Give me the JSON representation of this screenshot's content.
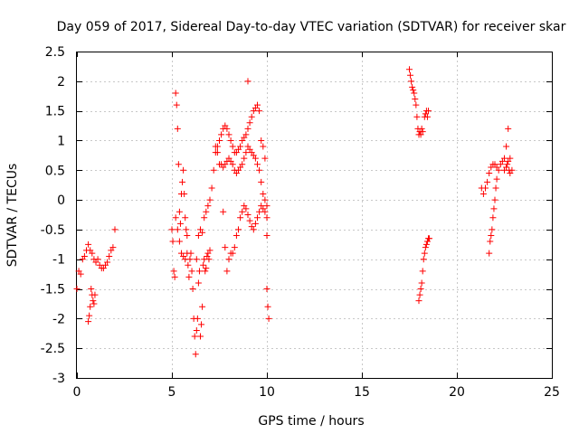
{
  "chart_data": {
    "type": "scatter",
    "title": "Day 059 of 2017, Sidereal Day-to-day VTEC variation (SDTVAR) for receiver skar",
    "xlabel": "GPS time / hours",
    "ylabel": "SDTVAR / TECUs",
    "xlim": [
      0,
      25
    ],
    "ylim": [
      -3,
      2.5
    ],
    "xticks": [
      0,
      5,
      10,
      15,
      20,
      25
    ],
    "xtick_labels": [
      "0",
      "5",
      "10",
      "15",
      "20",
      "25"
    ],
    "yticks": [
      -3,
      -2.5,
      -2,
      -1.5,
      -1,
      -0.5,
      0,
      0.5,
      1,
      1.5,
      2,
      2.5
    ],
    "ytick_labels": [
      "-3",
      "-2.5",
      "-2",
      "-1.5",
      "-1",
      "-0.5",
      "0",
      "0.5",
      "1",
      "1.5",
      "2",
      "2.5"
    ],
    "grid": true,
    "marker": "+",
    "color": "#ff0000",
    "series": [
      {
        "name": "SDTVAR",
        "x": [
          0.0,
          0.1,
          0.2,
          0.3,
          0.4,
          0.5,
          0.6,
          0.7,
          0.8,
          0.9,
          1.0,
          1.1,
          1.2,
          1.3,
          1.4,
          1.5,
          1.6,
          1.7,
          1.8,
          1.9,
          2.0,
          0.6,
          0.65,
          0.7,
          0.75,
          0.8,
          0.85,
          0.9,
          0.95,
          5.0,
          5.05,
          5.1,
          5.15,
          5.2,
          5.25,
          5.3,
          5.35,
          5.4,
          5.45,
          5.5,
          5.55,
          5.6,
          5.65,
          5.7,
          5.75,
          5.8,
          5.85,
          5.9,
          5.95,
          6.0,
          6.05,
          6.1,
          6.15,
          6.2,
          6.25,
          6.3,
          6.35,
          6.4,
          6.45,
          6.5,
          6.55,
          6.6,
          6.65,
          6.7,
          6.75,
          6.8,
          6.85,
          6.9,
          6.95,
          7.0,
          5.2,
          5.3,
          5.4,
          5.5,
          5.6,
          5.7,
          5.8,
          6.3,
          6.4,
          6.5,
          6.6,
          6.7,
          6.8,
          6.9,
          7.0,
          7.1,
          7.2,
          7.3,
          7.4,
          7.5,
          7.6,
          7.7,
          7.8,
          7.9,
          8.0,
          8.1,
          8.2,
          8.3,
          8.4,
          8.5,
          8.6,
          8.7,
          8.8,
          8.9,
          9.0,
          9.1,
          9.2,
          9.3,
          9.4,
          9.5,
          9.6,
          9.7,
          9.8,
          9.9,
          10.0,
          7.3,
          7.4,
          7.5,
          7.6,
          7.7,
          7.8,
          7.9,
          8.0,
          8.1,
          8.2,
          8.3,
          8.4,
          8.5,
          8.6,
          8.7,
          8.8,
          8.9,
          9.0,
          9.1,
          9.2,
          9.3,
          9.4,
          9.5,
          9.6,
          9.7,
          9.8,
          9.9,
          10.0,
          7.7,
          7.8,
          7.9,
          8.0,
          8.1,
          8.2,
          8.3,
          8.4,
          8.5,
          8.6,
          8.7,
          8.8,
          8.9,
          9.0,
          9.1,
          9.2,
          9.3,
          9.4,
          9.5,
          9.6,
          9.7,
          9.8,
          9.9,
          10.0,
          9.0,
          10.0,
          10.05,
          10.1,
          17.5,
          17.55,
          17.6,
          17.65,
          17.7,
          17.75,
          17.8,
          17.85,
          17.9,
          17.95,
          18.0,
          18.05,
          18.1,
          18.15,
          18.2,
          18.3,
          18.35,
          18.4,
          18.45,
          18.5,
          18.0,
          18.05,
          18.1,
          18.15,
          18.2,
          18.25,
          18.3,
          18.35,
          18.4,
          18.45,
          18.5,
          18.55,
          21.3,
          21.4,
          21.5,
          21.6,
          21.7,
          21.8,
          21.9,
          22.0,
          22.1,
          22.2,
          22.3,
          22.4,
          22.5,
          22.6,
          22.7,
          22.8,
          22.9,
          21.7,
          21.75,
          21.8,
          21.85,
          21.9,
          21.95,
          22.0,
          22.05,
          22.1,
          22.5,
          22.6,
          22.65,
          22.7,
          22.75,
          22.8
        ],
        "y": [
          -1.5,
          -1.2,
          -1.25,
          -1.0,
          -0.95,
          -0.85,
          -0.75,
          -0.85,
          -0.9,
          -1.0,
          -1.05,
          -1.0,
          -1.1,
          -1.15,
          -1.15,
          -1.1,
          -1.05,
          -0.95,
          -0.85,
          -0.8,
          -0.5,
          -2.05,
          -1.95,
          -1.8,
          -1.5,
          -1.6,
          -1.7,
          -1.75,
          -1.6,
          -0.5,
          -0.7,
          -1.2,
          -1.3,
          1.8,
          1.6,
          1.2,
          0.6,
          -0.2,
          -0.4,
          0.1,
          0.3,
          0.5,
          0.1,
          -0.3,
          -0.5,
          -0.9,
          -1.1,
          -1.3,
          -1.0,
          -0.9,
          -1.2,
          -1.5,
          -2.0,
          -2.3,
          -2.6,
          -2.2,
          -2.0,
          -1.4,
          -1.2,
          -2.3,
          -2.1,
          -1.8,
          -1.1,
          -1.0,
          -1.2,
          -1.15,
          -0.95,
          -0.9,
          -1.0,
          -0.85,
          -0.3,
          -0.5,
          -0.7,
          -0.9,
          -0.95,
          -1.0,
          -0.6,
          -1.0,
          -0.6,
          -0.5,
          -0.55,
          -0.3,
          -0.2,
          -0.1,
          0.0,
          0.2,
          0.5,
          0.8,
          0.9,
          1.0,
          1.1,
          1.2,
          1.25,
          1.2,
          1.1,
          1.0,
          0.9,
          0.8,
          0.8,
          0.85,
          0.9,
          1.0,
          1.05,
          1.1,
          1.2,
          1.3,
          1.4,
          1.5,
          1.55,
          1.6,
          1.5,
          1.0,
          0.9,
          0.7,
          -0.6,
          0.9,
          0.8,
          0.6,
          0.6,
          0.55,
          0.6,
          0.65,
          0.7,
          0.65,
          0.6,
          0.5,
          0.45,
          0.5,
          0.55,
          0.6,
          0.7,
          0.8,
          0.9,
          0.85,
          0.8,
          0.75,
          0.7,
          0.6,
          0.5,
          0.3,
          0.1,
          0.0,
          -0.1,
          -0.2,
          -0.8,
          -1.2,
          -1.0,
          -0.9,
          -0.9,
          -0.8,
          -0.6,
          -0.5,
          -0.3,
          -0.2,
          -0.1,
          -0.15,
          -0.25,
          -0.35,
          -0.45,
          -0.5,
          -0.4,
          -0.3,
          -0.2,
          -0.1,
          -0.15,
          -0.2,
          -0.3,
          2.0,
          -1.5,
          -1.8,
          -2.0,
          2.2,
          2.1,
          2.0,
          1.9,
          1.85,
          1.8,
          1.7,
          1.6,
          1.4,
          1.2,
          1.1,
          1.15,
          1.1,
          1.2,
          1.15,
          1.4,
          1.45,
          1.5,
          1.4,
          1.5,
          -1.7,
          -1.6,
          -1.5,
          -1.4,
          -1.2,
          -1.0,
          -0.9,
          -0.8,
          -0.75,
          -0.7,
          -0.65,
          -0.65,
          0.2,
          0.1,
          0.2,
          0.3,
          0.45,
          0.55,
          0.6,
          0.6,
          0.55,
          0.5,
          0.6,
          0.65,
          0.7,
          0.9,
          1.2,
          0.7,
          0.5,
          -0.9,
          -0.7,
          -0.6,
          -0.5,
          -0.3,
          -0.15,
          0.0,
          0.2,
          0.35,
          0.5,
          0.55,
          0.6,
          0.65,
          0.5,
          0.45
        ]
      }
    ]
  }
}
